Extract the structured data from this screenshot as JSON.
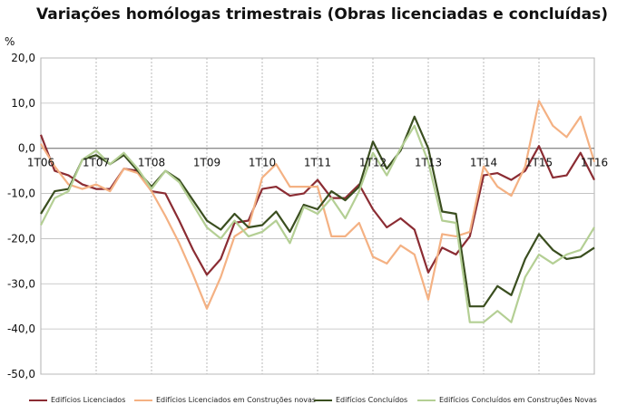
{
  "chart_data": {
    "type": "line",
    "title": "Variações homólogas trimestrais (Obras licenciadas e concluídas)",
    "ylabel": "%",
    "xlabel": "",
    "ylim": [
      -50,
      20
    ],
    "yticks": [
      20,
      10,
      0,
      -10,
      -20,
      -30,
      -40,
      -50
    ],
    "ytick_labels": [
      "20,0",
      "10,0",
      "0,0",
      "-10,0",
      "-20,0",
      "-30,0",
      "-40,0",
      "-50,0"
    ],
    "grid": true,
    "legend_position": "bottom",
    "categories": [
      "1T06",
      "2T06",
      "3T06",
      "4T06",
      "1T07",
      "2T07",
      "3T07",
      "4T07",
      "1T08",
      "2T08",
      "3T08",
      "4T08",
      "1T09",
      "2T09",
      "3T09",
      "4T09",
      "1T10",
      "2T10",
      "3T10",
      "4T10",
      "1T11",
      "2T11",
      "3T11",
      "4T11",
      "1T12",
      "2T12",
      "3T12",
      "4T12",
      "1T13",
      "2T13",
      "3T13",
      "4T13",
      "1T14",
      "2T14",
      "3T14",
      "4T14",
      "1T15",
      "2T15",
      "3T15",
      "4T15",
      "1T16"
    ],
    "x_tick_labels": [
      "1T06",
      "",
      "",
      "",
      "1T07",
      "",
      "",
      "",
      "1T08",
      "",
      "",
      "",
      "1T09",
      "",
      "",
      "",
      "1T10",
      "",
      "",
      "",
      "1T11",
      "",
      "",
      "",
      "1T12",
      "",
      "",
      "",
      "1T13",
      "",
      "",
      "",
      "1T14",
      "",
      "",
      "",
      "1T15",
      "",
      "",
      "",
      "1T16"
    ],
    "series": [
      {
        "name": "Edifícios Licenciados",
        "color": "#8b2c33",
        "values": [
          3,
          -5,
          -6,
          -8,
          -9,
          -9,
          -4.5,
          -5,
          -9.5,
          -10,
          -16,
          -22.5,
          -28,
          -24.5,
          -16.5,
          -16,
          -9,
          -8.5,
          -10.5,
          -10,
          -7,
          -11,
          -11,
          -8,
          -13.5,
          -17.5,
          -15.5,
          -18,
          -27.5,
          -22,
          -23.5,
          -19.5,
          -6,
          -5.5,
          -7,
          -5,
          0.5,
          -6.5,
          -6,
          -1,
          -7
        ]
      },
      {
        "name": "Edifícios Licenciados em Construções novas",
        "color": "#f4b183",
        "values": [
          1,
          -4,
          -8,
          -9,
          -8,
          -9.5,
          -4.5,
          -5.5,
          -9.5,
          -15,
          -21,
          -28,
          -35.5,
          -28.5,
          -19.5,
          -17.5,
          -6.5,
          -3.5,
          -8.5,
          -8.5,
          -8.5,
          -19.5,
          -19.5,
          -16.5,
          -24,
          -25.5,
          -21.5,
          -23.5,
          -33.5,
          -19,
          -19.5,
          -18.5,
          -4,
          -8.5,
          -10.5,
          -4,
          10.5,
          5,
          2.5,
          7,
          -3
        ]
      },
      {
        "name": "Edifícios Concluídos",
        "color": "#3a4e1f",
        "values": [
          -14.5,
          -9.5,
          -9,
          -2.5,
          -1.5,
          -3.5,
          -1.5,
          -5,
          -8.5,
          -5,
          -7,
          -11.5,
          -16,
          -18,
          -14.5,
          -17.5,
          -17,
          -14,
          -18.5,
          -12.5,
          -13.5,
          -9.5,
          -11.5,
          -8.5,
          1.5,
          -4.5,
          -0.5,
          7,
          0,
          -14,
          -14.5,
          -35,
          -35,
          -30.5,
          -32.5,
          -24.5,
          -19,
          -22.5,
          -24.5,
          -24,
          -22
        ]
      },
      {
        "name": "Edifícios Concluídos em Construções Novas",
        "color": "#b4cf94",
        "values": [
          -17,
          -11,
          -9.5,
          -2.5,
          -0.5,
          -3.5,
          -1,
          -4.5,
          -9,
          -5,
          -7.5,
          -12.5,
          -17.5,
          -20,
          -16,
          -19.5,
          -18.5,
          -16,
          -21,
          -13,
          -14.5,
          -11,
          -15.5,
          -9.5,
          -1,
          -6,
          0,
          5,
          -3,
          -16,
          -16.5,
          -38.5,
          -38.5,
          -36,
          -38.5,
          -28.5,
          -23.5,
          -25.5,
          -23.5,
          -22.5,
          -17.5
        ]
      }
    ]
  }
}
